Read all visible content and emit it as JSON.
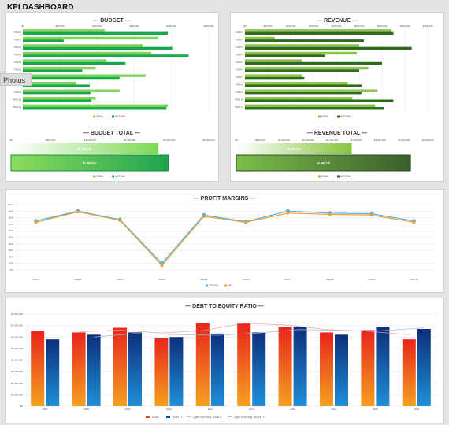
{
  "page_title": "KPI DASHBOARD",
  "overlay_label": "Photos",
  "colors": {
    "budget_goal": "#7fd35a",
    "budget_actual": "#1aa64a",
    "revenue_goal": "#8bc34a",
    "revenue_actual": "#2e6b1f",
    "gross": "#5ab0e6",
    "net": "#f0a030",
    "debt": "#e64a19",
    "equity": "#0b4ea2"
  },
  "panels": {
    "budget": {
      "title": "— BUDGET —",
      "total_title": "— BUDGET TOTAL —"
    },
    "revenue": {
      "title": "— REVENUE —",
      "total_title": "— REVENUE TOTAL —"
    },
    "profit": {
      "title": "— PROFIT MARGINS —"
    },
    "debt": {
      "title": "— DEBT TO EQUITY RATIO —"
    }
  },
  "chart_data": [
    {
      "id": "budget",
      "type": "bar",
      "orientation": "horizontal",
      "title": "— BUDGET —",
      "categories": [
        "ITEM 1",
        "ITEM 2",
        "ITEM 3",
        "ITEM 4",
        "ITEM 5",
        "ITEM 6",
        "ITEM 7",
        "ITEM 8",
        "ITEM 9",
        "ITEM 10",
        "ITEM 11"
      ],
      "series": [
        {
          "name": "GOAL",
          "values": [
            110000,
            182000,
            161000,
            173000,
            112000,
            98000,
            165000,
            72000,
            130000,
            98000,
            195000
          ]
        },
        {
          "name": "ACTUAL",
          "values": [
            195000,
            55000,
            201000,
            223000,
            138000,
            80000,
            130000,
            90000,
            91000,
            92000,
            193000
          ]
        }
      ],
      "tick_labels": [
        "$0",
        "$50,000",
        "$100,000",
        "$150,000",
        "$200,000",
        "$250,000"
      ],
      "xlim": [
        0,
        250000
      ],
      "legend": [
        "GOAL",
        "ACTUAL"
      ],
      "grid": true
    },
    {
      "id": "budget_total",
      "type": "bar",
      "orientation": "horizontal",
      "title": "— BUDGET TOTAL —",
      "categories": [
        "GOAL",
        "ACTUAL"
      ],
      "values": [
        1863239,
        1986810
      ],
      "data_labels": [
        "$1,863,239",
        "$1,986,810"
      ],
      "tick_labels": [
        "$0",
        "$500,000",
        "$1,000,000",
        "$1,500,000",
        "$2,000,000",
        "$2,500,000"
      ],
      "xlim": [
        0,
        2500000
      ],
      "legend": [
        "GOAL",
        "ACTUAL"
      ]
    },
    {
      "id": "revenue",
      "type": "bar",
      "orientation": "horizontal",
      "title": "— REVENUE —",
      "categories": [
        "ITEM 1",
        "ITEM 2",
        "ITEM 3",
        "ITEM 4",
        "ITEM 5",
        "ITEM 6",
        "ITEM 7",
        "ITEM 8",
        "ITEM 9",
        "ITEM 10",
        "ITEM 11"
      ],
      "series": [
        {
          "name": "GOAL",
          "values": [
            320000,
            65000,
            250000,
            245000,
            125000,
            270000,
            125000,
            225000,
            290000,
            235000,
            285000
          ]
        },
        {
          "name": "ACTUAL",
          "values": [
            325000,
            260000,
            365000,
            175000,
            300000,
            250000,
            130000,
            255000,
            255000,
            325000,
            305000
          ]
        }
      ],
      "tick_labels": [
        "$0",
        "$50,000",
        "$100,000",
        "$150,000",
        "$200,000",
        "$250,000",
        "$300,000",
        "$350,000",
        "$400,000"
      ],
      "xlim": [
        0,
        400000
      ],
      "legend": [
        "GOAL",
        "ACTUAL"
      ],
      "grid": true
    },
    {
      "id": "revenue_total",
      "type": "bar",
      "orientation": "horizontal",
      "title": "— REVENUE TOTAL —",
      "categories": [
        "GOAL",
        "ACTUAL"
      ],
      "values": [
        2410562,
        3640136
      ],
      "data_labels": [
        "$2,410,562",
        "$3,640,136"
      ],
      "tick_labels": [
        "$0",
        "$500,000",
        "$1,000,000",
        "$1,500,000",
        "$2,000,000",
        "$2,500,000",
        "$3,000,000",
        "$3,500,000",
        "$4,000,000"
      ],
      "xlim": [
        0,
        4000000
      ],
      "legend": [
        "GOAL",
        "ACTUAL"
      ]
    },
    {
      "id": "profit",
      "type": "line",
      "title": "— PROFIT MARGINS —",
      "categories": [
        "ITEM 1",
        "ITEM 2",
        "ITEM 3",
        "ITEM 4",
        "ITEM 5",
        "ITEM 6",
        "ITEM 7",
        "ITEM 8",
        "ITEM 9",
        "ITEM 10"
      ],
      "series": [
        {
          "name": "GROSS",
          "values": [
            75,
            90,
            77,
            10,
            84,
            74,
            90,
            87,
            86,
            75
          ]
        },
        {
          "name": "NET",
          "values": [
            73,
            89,
            76,
            7,
            82,
            73,
            87,
            85,
            84,
            73
          ]
        }
      ],
      "tick_labels": [
        "0%",
        "10%",
        "20%",
        "30%",
        "40%",
        "50%",
        "60%",
        "70%",
        "80%",
        "90%",
        "100%"
      ],
      "ylim": [
        0,
        100
      ],
      "legend": [
        "GROSS",
        "NET"
      ],
      "grid": true
    },
    {
      "id": "debt_equity",
      "type": "bar",
      "title": "— DEBT TO EQUITY RATIO —",
      "categories": [
        "2007",
        "2008",
        "2009",
        "2010",
        "2011",
        "2012",
        "2013",
        "2014",
        "2015",
        "2016"
      ],
      "series": [
        {
          "name": "DEBT",
          "values": [
            6500000,
            6400000,
            6800000,
            5900000,
            7200000,
            7200000,
            6900000,
            6400000,
            6600000,
            5800000
          ]
        },
        {
          "name": "EQUITY",
          "values": [
            5800000,
            6200000,
            6400000,
            6000000,
            6300000,
            6400000,
            6900000,
            6200000,
            6900000,
            6700000
          ]
        },
        {
          "name": "2 per. Mov. Avg. (DEBT)",
          "type": "line"
        },
        {
          "name": "2 per. Mov. Avg. (EQUITY)",
          "type": "line"
        }
      ],
      "tick_labels": [
        "$0",
        "$1,000,000",
        "$2,000,000",
        "$3,000,000",
        "$4,000,000",
        "$5,000,000",
        "$6,000,000",
        "$7,000,000",
        "$8,000,000"
      ],
      "ylim": [
        0,
        8000000
      ],
      "legend": [
        "DEBT",
        "EQUITY",
        "2 per. Mov. Avg. (DEBT)",
        "2 per. Mov. Avg. (EQUITY)"
      ],
      "grid": true
    }
  ]
}
